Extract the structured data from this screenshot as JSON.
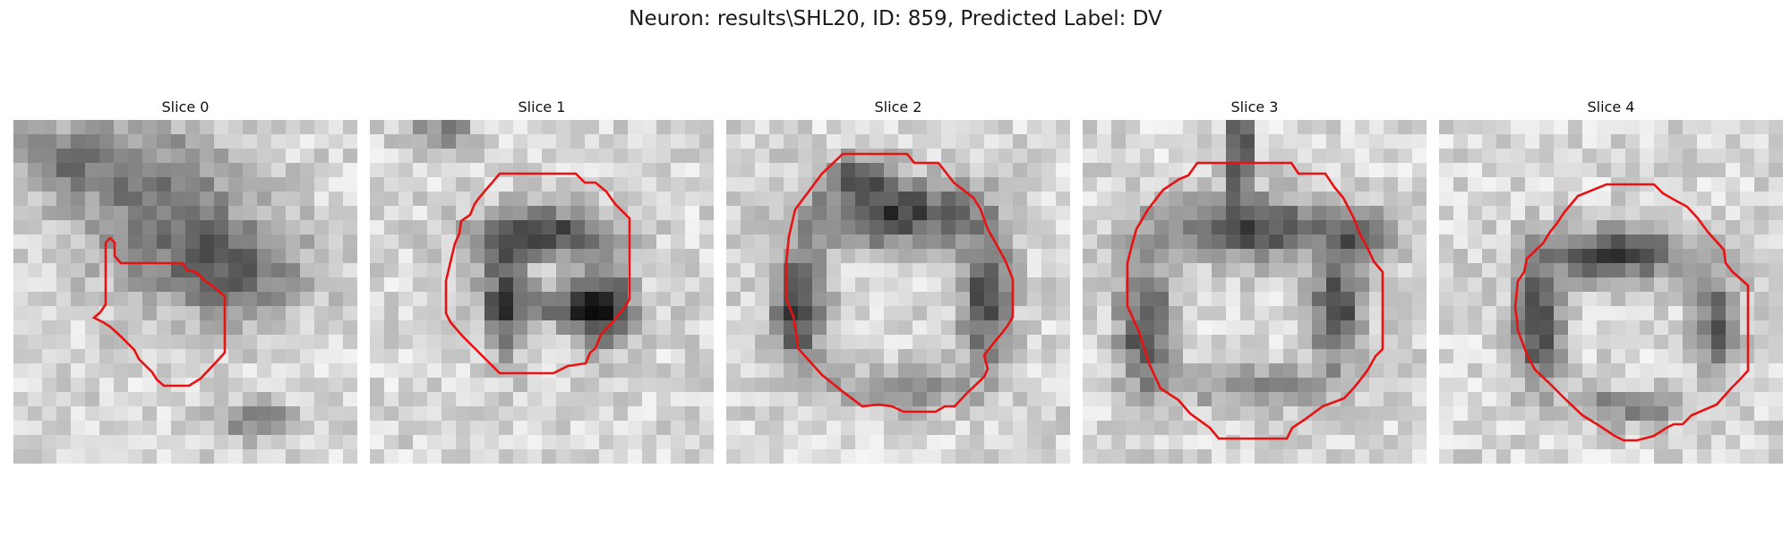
{
  "figure": {
    "title": "Neuron: results\\SHL20, ID: 859, Predicted Label: DV"
  },
  "slices": [
    {
      "title": "Slice 0"
    },
    {
      "title": "Slice 1"
    },
    {
      "title": "Slice 2"
    },
    {
      "title": "Slice 3"
    },
    {
      "title": "Slice 4"
    }
  ],
  "colors": {
    "contour": "#e81212",
    "colormap": "grayscale"
  }
}
